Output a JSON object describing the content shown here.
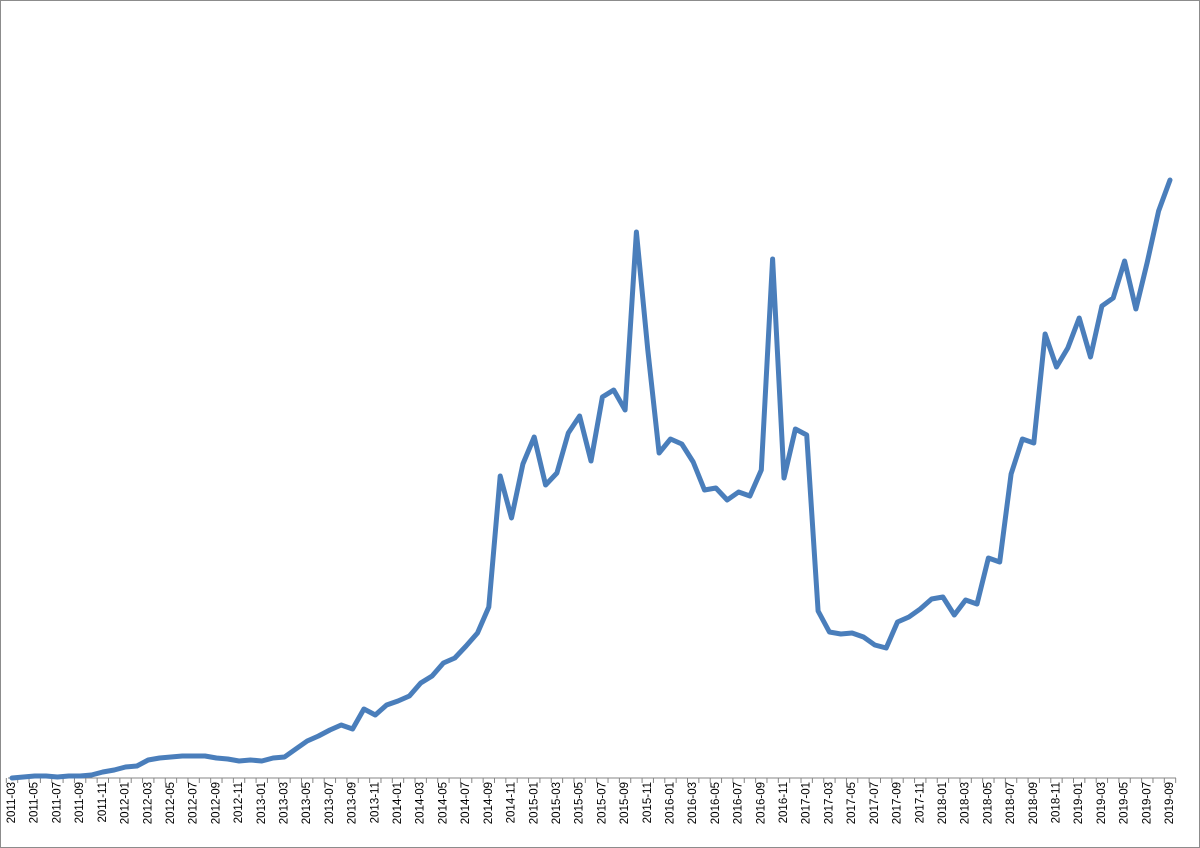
{
  "chart_data": {
    "type": "line",
    "color": "#4a7ebb",
    "categories": [
      "2011-03",
      null,
      "2011-05",
      null,
      "2011-07",
      null,
      "2011-09",
      null,
      "2011-11",
      null,
      "2012-01",
      null,
      "2012-03",
      null,
      "2012-05",
      null,
      "2012-07",
      null,
      "2012-09",
      null,
      "2012-11",
      null,
      "2013-01",
      null,
      "2013-03",
      null,
      "2013-05",
      null,
      "2013-07",
      null,
      "2013-09",
      null,
      "2013-11",
      null,
      "2014-01",
      null,
      "2014-03",
      null,
      "2014-05",
      null,
      "2014-07",
      null,
      "2014-09",
      null,
      "2014-11",
      null,
      "2015-01",
      null,
      "2015-03",
      null,
      "2015-05",
      null,
      "2015-07",
      null,
      "2015-09",
      null,
      "2015-11",
      null,
      "2016-01",
      null,
      "2016-03",
      null,
      "2016-05",
      null,
      "2016-07",
      null,
      "2016-09",
      null,
      "2016-11",
      null,
      "2017-01",
      null,
      "2017-03",
      null,
      "2017-05",
      null,
      "2017-07",
      null,
      "2017-09",
      null,
      "2017-11",
      null,
      "2018-01",
      null,
      "2018-03",
      null,
      "2018-05",
      null,
      "2018-07",
      null,
      "2018-09",
      null,
      "2018-11",
      null,
      "2019-01",
      null,
      "2019-03",
      null,
      "2019-05",
      null,
      "2019-07",
      null,
      "2019-09"
    ],
    "values": [
      0,
      0.1,
      0.2,
      0.2,
      0.1,
      0.2,
      0.2,
      0.3,
      0.6,
      0.8,
      1.1,
      1.2,
      1.8,
      2,
      2.1,
      2.2,
      2.2,
      2.2,
      2,
      1.9,
      1.7,
      1.8,
      1.7,
      2,
      2.1,
      2.9,
      3.7,
      4.2,
      4.8,
      5.3,
      4.9,
      6.9,
      6.3,
      7.3,
      7.7,
      8.2,
      9.5,
      10.2,
      11.5,
      12,
      13.2,
      14.5,
      17.1,
      30.2,
      26,
      31.4,
      34.1,
      29.3,
      30.5,
      34.5,
      36.2,
      31.7,
      38.1,
      38.8,
      36.8,
      54.6,
      42.8,
      32.5,
      33.9,
      33.4,
      31.6,
      28.8,
      29,
      27.8,
      28.6,
      28.2,
      30.8,
      51.9,
      30,
      34.9,
      34.3,
      16.7,
      14.6,
      14.4,
      14.5,
      14.1,
      13.3,
      13,
      15.6,
      16.1,
      16.9,
      17.9,
      18.1,
      16.3,
      17.8,
      17.4,
      22,
      21.6,
      30.4,
      33.9,
      33.5,
      44.4,
      41.1,
      43,
      46,
      42.1,
      47.2,
      48,
      51.7,
      46.9,
      51.6,
      56.7,
      59.8
    ],
    "ylim": [
      0,
      77.3
    ]
  }
}
